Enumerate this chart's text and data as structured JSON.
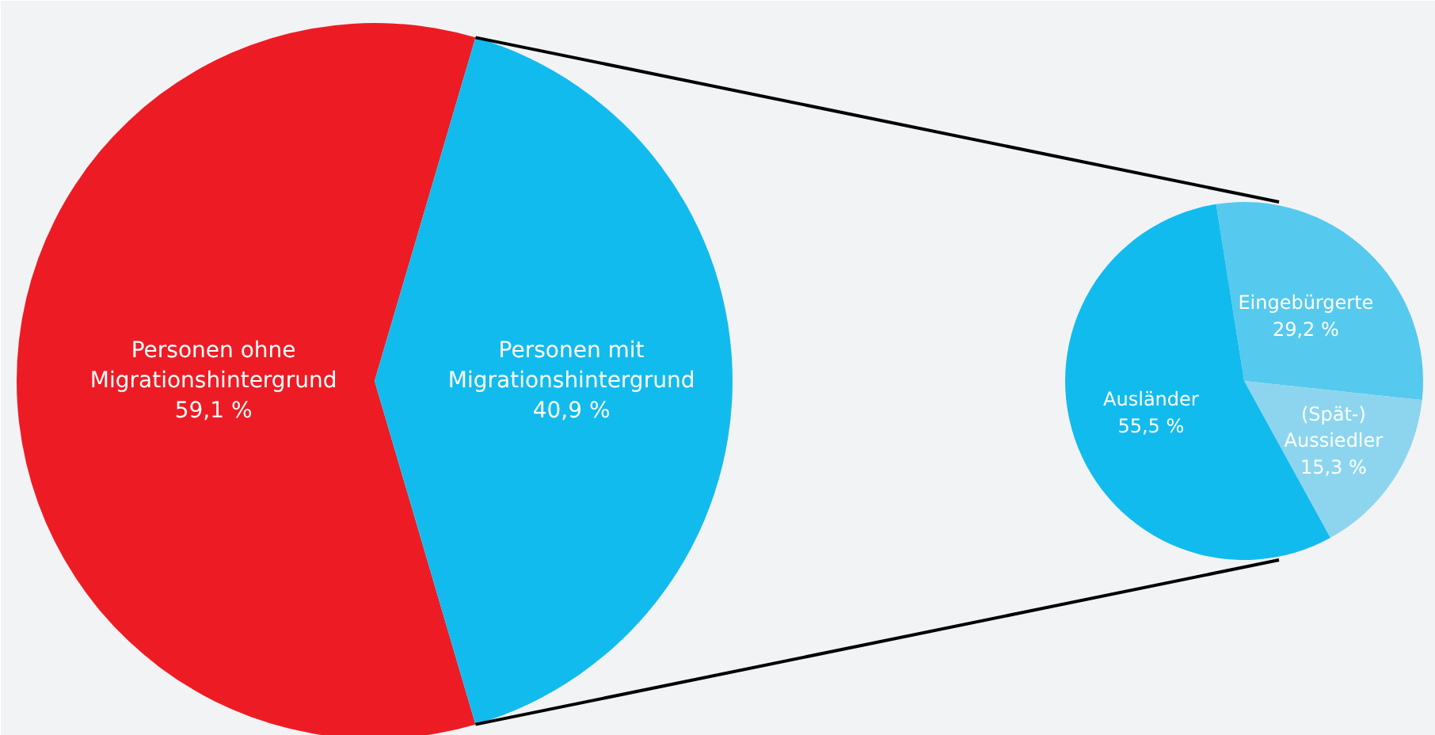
{
  "chart_data": [
    {
      "type": "pie",
      "categories": [
        "Personen ohne\nMigrationshintergrund",
        "Personen mit\nMigrationshintergrund"
      ],
      "values": [
        59.1,
        40.9
      ],
      "colors": [
        "#ed1c24",
        "#12bbed"
      ],
      "value_labels": [
        "59,1 %",
        "40,9 %"
      ]
    },
    {
      "type": "pie",
      "categories": [
        "Eingebürgerte",
        "(Spät-)\nAussiedler",
        "Ausländer"
      ],
      "values": [
        29.2,
        15.3,
        55.5
      ],
      "colors": [
        "#56c9ee",
        "#8dd5ef",
        "#12bbed"
      ],
      "value_labels": [
        "29,2 %",
        "15,3 %",
        "55,5 %"
      ]
    }
  ]
}
